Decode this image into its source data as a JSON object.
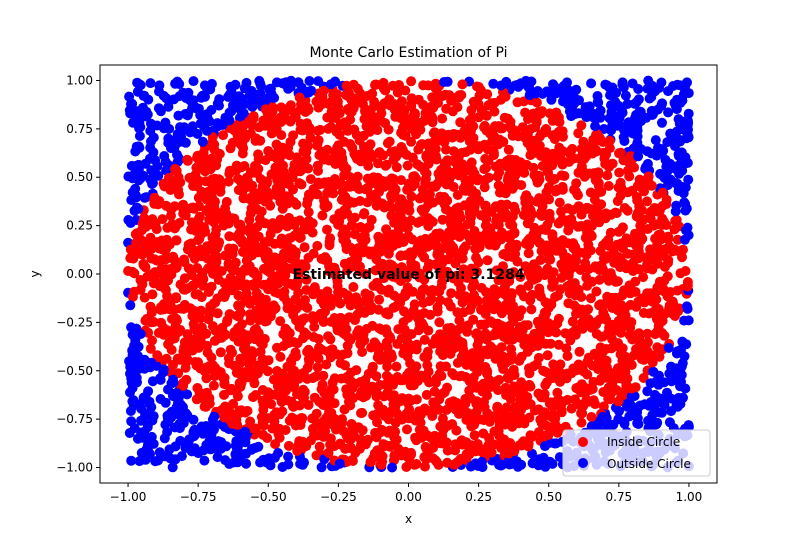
{
  "chart_data": {
    "type": "scatter",
    "title": "Monte Carlo Estimation of Pi",
    "xlabel": "x",
    "ylabel": "y",
    "xlim": [
      -1.1,
      1.1
    ],
    "ylim": [
      -1.08,
      1.08
    ],
    "xticks": [
      -1.0,
      -0.75,
      -0.5,
      -0.25,
      0.0,
      0.25,
      0.5,
      0.75,
      1.0
    ],
    "yticks": [
      -1.0,
      -0.75,
      -0.5,
      -0.25,
      0.0,
      0.25,
      0.5,
      0.75,
      1.0
    ],
    "xtick_labels": [
      "−1.00",
      "−0.75",
      "−0.50",
      "−0.25",
      "0.00",
      "0.25",
      "0.50",
      "0.75",
      "1.00"
    ],
    "ytick_labels": [
      "−1.00",
      "−0.75",
      "−0.50",
      "−0.25",
      "0.00",
      "0.25",
      "0.50",
      "0.75",
      "1.00"
    ],
    "grid": false,
    "legend_position": "bottom-right",
    "series": [
      {
        "name": "Inside Circle",
        "color": "#ff0000",
        "region": "x^2 + y^2 <= 1"
      },
      {
        "name": "Outside Circle",
        "color": "#0000ff",
        "region": "x^2 + y^2 > 1, |x| <= 1, |y| <= 1"
      }
    ],
    "annotation": {
      "text": "Estimated value of pi: 3.1284",
      "x": 0.0,
      "y": 0.0
    }
  }
}
